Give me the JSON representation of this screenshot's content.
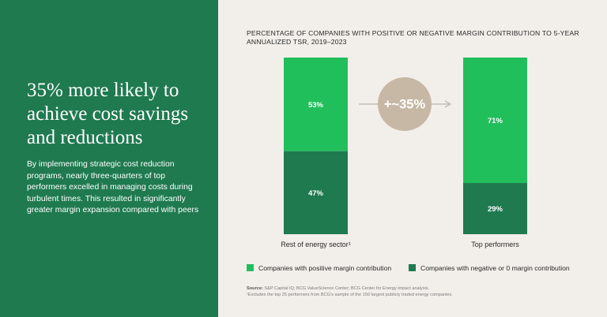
{
  "left": {
    "headline": "35% more likely to achieve cost savings and reductions",
    "body": "By implementing strategic cost reduction programs, nearly three-quarters of top performers excelled in managing costs during turbulent times. This resulted in significantly greater margin expansion compared with peers"
  },
  "chart_data": {
    "type": "bar",
    "stacked": true,
    "title": "PERCENTAGE OF COMPANIES WITH POSITIVE OR NEGATIVE MARGIN CONTRIBUTION TO 5-YEAR ANNUALIZED TSR, 2019–2023",
    "categories": [
      "Rest of energy sector¹",
      "Top performers"
    ],
    "series": [
      {
        "name": "Companies with positive margin contribution",
        "values": [
          53,
          71
        ],
        "labels": [
          "53%",
          "71%"
        ],
        "color": "#21bf5b"
      },
      {
        "name": "Companies with negative or 0 margin contribution",
        "values": [
          47,
          29
        ],
        "labels": [
          "47%",
          "29%"
        ],
        "color": "#1f7a4f"
      }
    ],
    "ylim": [
      0,
      100
    ],
    "annotation": "+~35%",
    "annotation_color": "#c7b8a6"
  },
  "footer": {
    "source_label": "Source:",
    "source_text": " S&P Capital IQ; BCG ValueScience Center; BCG Center for Energy impact analysis.",
    "footnote": "¹Excludes the top 25 performers from BCG’s sample of the 150 largest publicly traded energy companies."
  },
  "colors": {
    "left_bg": "#1f7a4f",
    "right_bg": "#f2efea",
    "arrow": "#b9b4ad"
  }
}
